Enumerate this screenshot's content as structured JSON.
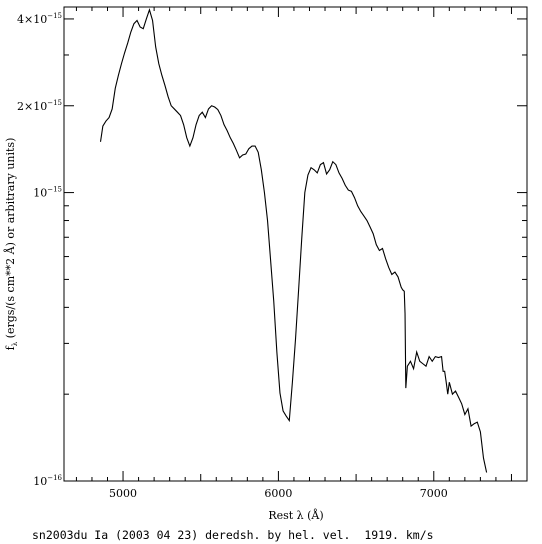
{
  "chart_data": {
    "type": "line",
    "xlabel": "Rest λ (Å)",
    "ylabel": "f_λ (ergs/(s cm**2 Å) or arbitrary units)",
    "ylabel_parts": {
      "f": "f",
      "sub": "λ",
      "rest": " (ergs/(s cm**2 Å) or arbitrary units)"
    },
    "caption": "sn2003du Ia (2003 04 23) deredsh. by hel. vel.  1919. km/s",
    "xlim": [
      4620,
      7600
    ],
    "ylim": [
      1e-16,
      4.4e-15
    ],
    "y_log": true,
    "grid": false,
    "x_major_ticks": [
      {
        "value": 5000,
        "label": "5000"
      },
      {
        "value": 6000,
        "label": "6000"
      },
      {
        "value": 7000,
        "label": "7000"
      }
    ],
    "y_major_ticks": [
      {
        "value": 1e-16,
        "mant": "10",
        "exp": "−16"
      },
      {
        "value": 1e-15,
        "mant": "10",
        "exp": "−15"
      },
      {
        "value": 2e-15,
        "mant": "2×10",
        "exp": "−15"
      },
      {
        "value": 4e-15,
        "mant": "4×10",
        "exp": "−15"
      }
    ],
    "x_minor_step": 100,
    "series": [
      {
        "x": [
          4855,
          4870,
          4890,
          4910,
          4930,
          4950,
          4970,
          4990,
          5010,
          5030,
          5050,
          5070,
          5090,
          5110,
          5130,
          5150,
          5170,
          5190,
          5210,
          5230,
          5250,
          5270,
          5290,
          5310,
          5330,
          5350,
          5370,
          5390,
          5410,
          5430,
          5450,
          5470,
          5490,
          5510,
          5530,
          5550,
          5570,
          5590,
          5610,
          5630,
          5650,
          5670,
          5690,
          5710,
          5730,
          5750,
          5770,
          5790,
          5810,
          5830,
          5850,
          5870,
          5890,
          5910,
          5930,
          5950,
          5970,
          5990,
          6010,
          6030,
          6050,
          6070,
          6090,
          6110,
          6130,
          6150,
          6170,
          6190,
          6210,
          6230,
          6250,
          6270,
          6290,
          6310,
          6330,
          6350,
          6370,
          6390,
          6410,
          6430,
          6450,
          6470,
          6490,
          6510,
          6530,
          6550,
          6570,
          6590,
          6610,
          6630,
          6650,
          6670,
          6690,
          6710,
          6730,
          6750,
          6770,
          6790,
          6800,
          6810,
          6815,
          6820,
          6830,
          6850,
          6870,
          6890,
          6910,
          6930,
          6950,
          6970,
          6990,
          7010,
          7030,
          7050,
          7060,
          7070,
          7080,
          7090,
          7100,
          7120,
          7140,
          7160,
          7180,
          7200,
          7220,
          7240,
          7260,
          7280,
          7300,
          7320,
          7340
        ],
        "y": [
          1.5e-15,
          1.7e-15,
          1.77e-15,
          1.82e-15,
          1.95e-15,
          2.3e-15,
          2.55e-15,
          2.8e-15,
          3.05e-15,
          3.3e-15,
          3.6e-15,
          3.85e-15,
          3.95e-15,
          3.75e-15,
          3.7e-15,
          4e-15,
          4.3e-15,
          3.95e-15,
          3.2e-15,
          2.8e-15,
          2.55e-15,
          2.35e-15,
          2.15e-15,
          2e-15,
          1.95e-15,
          1.9e-15,
          1.85e-15,
          1.72e-15,
          1.55e-15,
          1.45e-15,
          1.55e-15,
          1.72e-15,
          1.85e-15,
          1.9e-15,
          1.82e-15,
          1.95e-15,
          2e-15,
          1.98e-15,
          1.94e-15,
          1.85e-15,
          1.72e-15,
          1.64e-15,
          1.55e-15,
          1.48e-15,
          1.4e-15,
          1.32e-15,
          1.35e-15,
          1.36e-15,
          1.42e-15,
          1.45e-15,
          1.45e-15,
          1.38e-15,
          1.2e-15,
          1e-15,
          8e-16,
          5.8e-16,
          4.2e-16,
          2.8e-16,
          2.02e-16,
          1.75e-16,
          1.68e-16,
          1.62e-16,
          2.2e-16,
          3.1e-16,
          4.6e-16,
          6.9e-16,
          1e-15,
          1.15e-15,
          1.22e-15,
          1.2e-15,
          1.17e-15,
          1.25e-15,
          1.27e-15,
          1.16e-15,
          1.2e-15,
          1.28e-15,
          1.25e-15,
          1.17e-15,
          1.12e-15,
          1.06e-15,
          1.02e-15,
          1.01e-15,
          9.6e-16,
          9e-16,
          8.6e-16,
          8.3e-16,
          8e-16,
          7.6e-16,
          7.2e-16,
          6.6e-16,
          6.3e-16,
          6.4e-16,
          5.9e-16,
          5.5e-16,
          5.2e-16,
          5.3e-16,
          5.1e-16,
          4.7e-16,
          4.6e-16,
          4.55e-16,
          3.8e-16,
          2.1e-16,
          2.5e-16,
          2.6e-16,
          2.45e-16,
          2.8e-16,
          2.6e-16,
          2.55e-16,
          2.5e-16,
          2.7e-16,
          2.6e-16,
          2.7e-16,
          2.68e-16,
          2.7e-16,
          2.4e-16,
          2.4e-16,
          2.2e-16,
          2e-16,
          2.2e-16,
          2e-16,
          2.05e-16,
          1.95e-16,
          1.85e-16,
          1.7e-16,
          1.78e-16,
          1.55e-16,
          1.58e-16,
          1.6e-16,
          1.48e-16,
          1.2e-16,
          1.07e-16
        ]
      }
    ]
  }
}
